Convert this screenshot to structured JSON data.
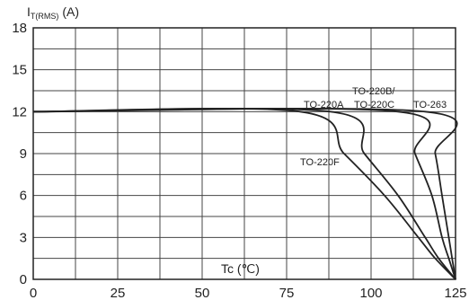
{
  "chart_data": {
    "type": "line",
    "ylabel_main": "I",
    "ylabel_sub": "T(RMS)",
    "ylabel_unit": "(A)",
    "xlabel": "Tc (℃)",
    "xlim": [
      0,
      125
    ],
    "ylim": [
      0,
      18
    ],
    "xticks": [
      0,
      25,
      50,
      75,
      100,
      125
    ],
    "yticks": [
      0,
      3,
      6,
      9,
      12,
      15,
      18
    ],
    "grid": true,
    "series": [
      {
        "name": "TO-220F",
        "points": [
          [
            0,
            12
          ],
          [
            79,
            12
          ],
          [
            92,
            9
          ],
          [
            104,
            6
          ],
          [
            114,
            3
          ],
          [
            119,
            1.5
          ],
          [
            125,
            0
          ]
        ]
      },
      {
        "name": "TO-220A",
        "points": [
          [
            0,
            12
          ],
          [
            88,
            12
          ],
          [
            98,
            9
          ],
          [
            108,
            6
          ],
          [
            116,
            3
          ],
          [
            120,
            1.5
          ],
          [
            125,
            0
          ]
        ]
      },
      {
        "name": "TO-220B/",
        "points": [
          [
            0,
            12
          ],
          [
            108,
            12
          ],
          [
            113,
            9
          ],
          [
            118,
            6
          ],
          [
            121,
            3
          ],
          [
            123,
            1.5
          ],
          [
            125,
            0
          ]
        ]
      },
      {
        "name": "TO-263",
        "points": [
          [
            0,
            12
          ],
          [
            116,
            12
          ],
          [
            119,
            9
          ],
          [
            121,
            6
          ],
          [
            123,
            3
          ],
          [
            124,
            1.5
          ],
          [
            125,
            0
          ]
        ]
      }
    ],
    "labels": {
      "to220a": "TO-220A",
      "to220b": "TO-220B/",
      "to220c": "TO-220C",
      "to263": "TO-263",
      "to220f": "TO-220F"
    }
  }
}
